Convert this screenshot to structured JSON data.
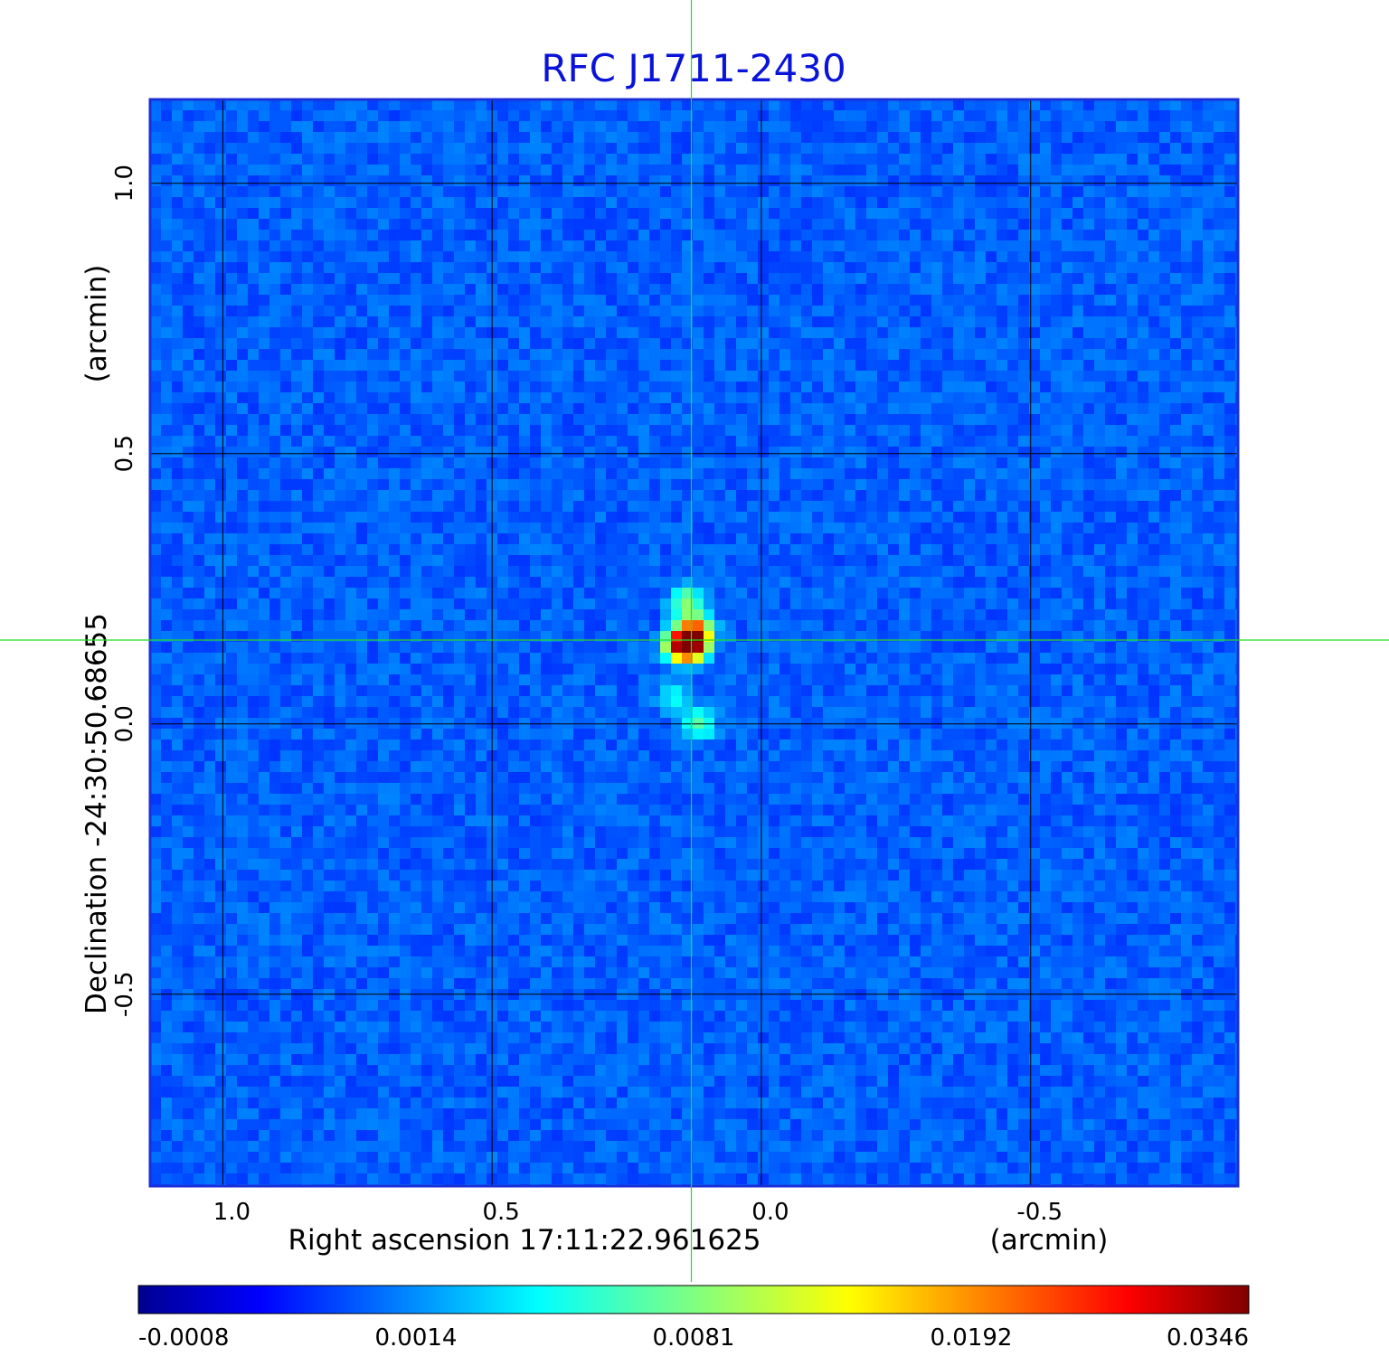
{
  "chart_data": {
    "type": "heatmap",
    "title": "RFC J1711-2430",
    "xlabel": "Right ascension  17:11:22.961625",
    "xunit": "(arcmin)",
    "ylabel": "Declination  -24:30:50.68655",
    "yunit": "(arcmin)",
    "xlim": [
      1.135,
      -0.885
    ],
    "ylim": [
      -0.855,
      1.155
    ],
    "x_ticks": [
      1.0,
      0.5,
      0.0,
      -0.5
    ],
    "y_ticks": [
      1.0,
      0.5,
      0.0,
      -0.5
    ],
    "x_tick_labels": [
      "1.0",
      "0.5",
      "0.0",
      "-0.5"
    ],
    "y_tick_labels": [
      "1.0",
      "0.5",
      "0.0",
      "-0.5"
    ],
    "grid": true,
    "crosshair": {
      "x": 0.13,
      "y": 0.155
    },
    "colormap": "jet",
    "background_level": 0.0009,
    "noise_amplitude": 0.0006,
    "features": [
      {
        "x": 0.13,
        "y": 0.15,
        "value": 0.0346
      },
      {
        "x": 0.15,
        "y": 0.145,
        "value": 0.022
      },
      {
        "x": 0.12,
        "y": 0.175,
        "value": 0.014
      },
      {
        "x": 0.14,
        "y": 0.225,
        "value": 0.0078
      },
      {
        "x": 0.115,
        "y": 0.0,
        "value": 0.0062
      },
      {
        "x": 0.16,
        "y": 0.05,
        "value": 0.0035
      }
    ],
    "colorbar": {
      "tick_labels": [
        "-0.0008",
        "0.0014",
        "0.0081",
        "0.0192",
        "0.0346"
      ],
      "min": -0.0008,
      "max": 0.0346
    }
  },
  "colors": {
    "title": "#0a14d8",
    "crosshair": "#22dd22",
    "grid": "#000000",
    "frame": "#1b2fd8"
  }
}
